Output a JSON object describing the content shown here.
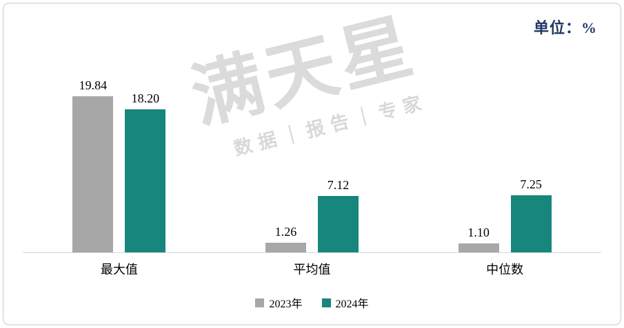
{
  "unit_label": "单位：%",
  "watermark": {
    "title": "满天星",
    "subtitle": "数据｜报告｜专家"
  },
  "chart_data": {
    "type": "bar",
    "title": "",
    "xlabel": "",
    "ylabel": "",
    "unit": "%",
    "categories": [
      "最大值",
      "平均值",
      "中位数"
    ],
    "series": [
      {
        "name": "2023年",
        "color": "#a7a7a7",
        "values": [
          19.84,
          1.26,
          1.1
        ]
      },
      {
        "name": "2024年",
        "color": "#17867d",
        "values": [
          18.2,
          7.12,
          7.25
        ]
      }
    ],
    "value_labels": [
      [
        "19.84",
        "18.20"
      ],
      [
        "1.26",
        "7.12"
      ],
      [
        "1.10",
        "7.25"
      ]
    ],
    "ylim": [
      0,
      22
    ],
    "grid": false,
    "legend_position": "bottom"
  }
}
